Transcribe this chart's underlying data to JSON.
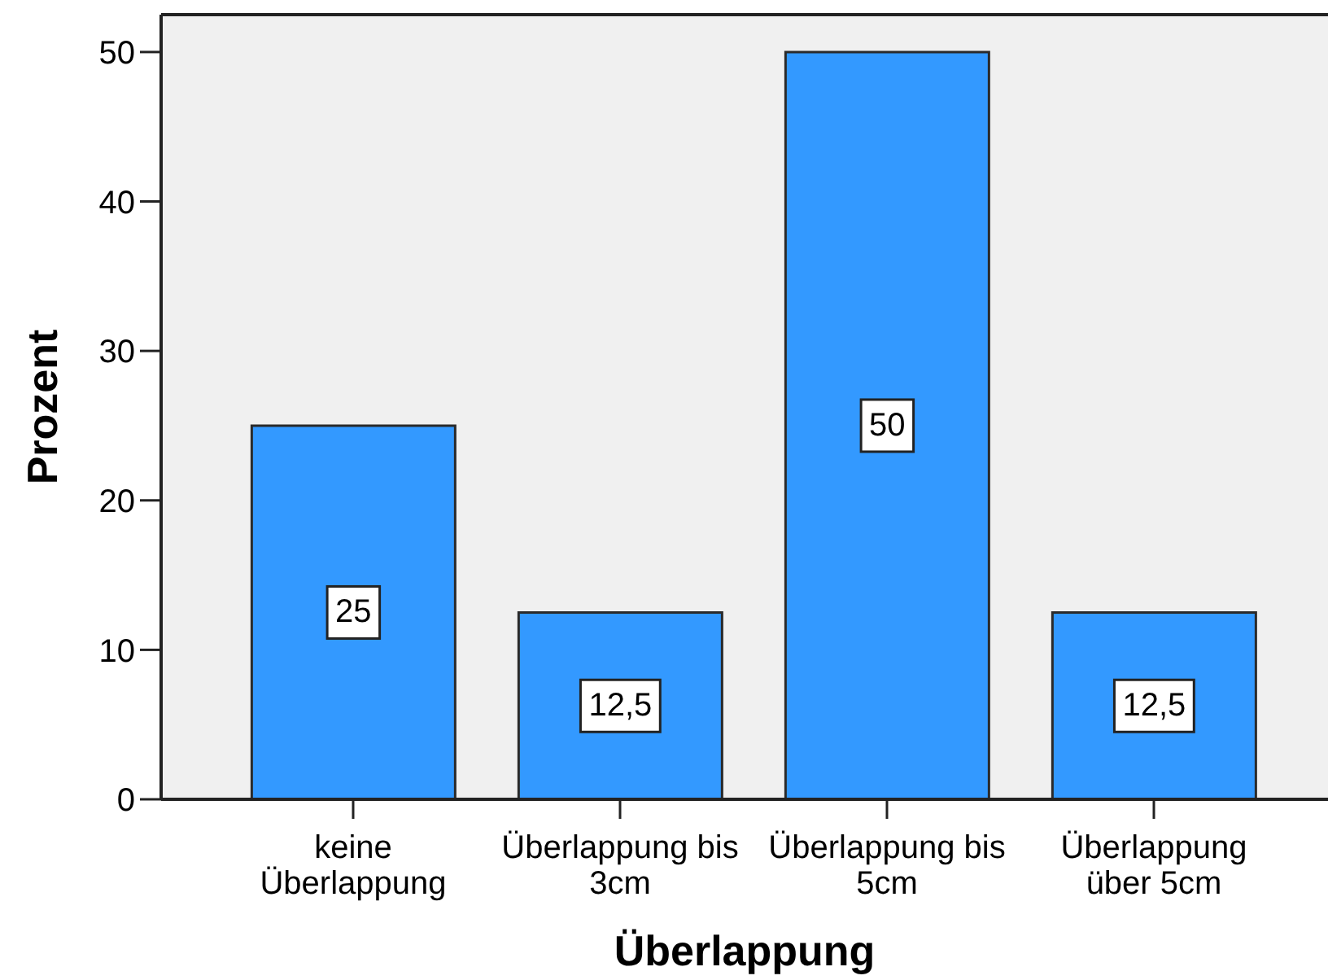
{
  "chart_data": {
    "type": "bar",
    "xlabel": "Überlappung",
    "ylabel": "Prozent",
    "categories": [
      "keine Überlappung",
      "Überlappung bis 3cm",
      "Überlappung bis 5cm",
      "Überlappung über 5cm"
    ],
    "values": [
      25,
      12.5,
      50,
      12.5
    ],
    "color": "#3399ff",
    "value_labels": [
      "25",
      "12,5",
      "50",
      "12,5"
    ],
    "ylim": [
      0,
      52.5
    ],
    "yticks": [
      0,
      10,
      20,
      30,
      40,
      50
    ]
  }
}
